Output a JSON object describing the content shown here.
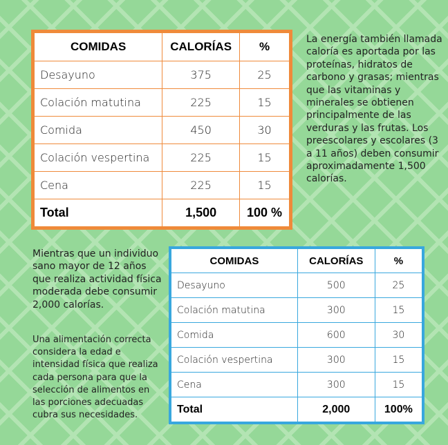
{
  "table1": {
    "headers": [
      "COMIDAS",
      "CALORÍAS",
      "%"
    ],
    "rows": [
      [
        "Desayuno",
        "375",
        "25"
      ],
      [
        "Colación matutina",
        "225",
        "15"
      ],
      [
        "Comida",
        "450",
        "30"
      ],
      [
        "Colación vespertina",
        "225",
        "15"
      ],
      [
        "Cena",
        "225",
        "15"
      ]
    ],
    "total": [
      "Total",
      "1,500",
      "100 %"
    ],
    "border_color": "#ef8a3a"
  },
  "table2": {
    "headers": [
      "COMIDAS",
      "CALORÍAS",
      "%"
    ],
    "rows": [
      [
        "Desayuno",
        "500",
        "25"
      ],
      [
        "Colación matutina",
        "300",
        "15"
      ],
      [
        "Comida",
        "600",
        "30"
      ],
      [
        "Colación vespertina",
        "300",
        "15"
      ],
      [
        "Cena",
        "300",
        "15"
      ]
    ],
    "total": [
      "Total",
      "2,000",
      "100%"
    ],
    "border_color": "#38a7de"
  },
  "text": {
    "right": "La energía también llamada caloría es aportada por las proteínas, hidratos de carbono y grasas; mientras que las vitaminas y minerales se obtienen principalmente de las verduras y las frutas. Los preescolares y escolares (3 a 11 años) deben consumir aproximadamente 1,500 calorías.",
    "left1": "Mientras que un individuo sano mayor de 12 años que realiza actividad física moderada debe consumir 2,000 calorías.",
    "left2": "Una alimentación correcta considera la edad e intensidad física que realiza cada persona para que la selección de alimentos en las porciones adecuadas cubra sus necesidades."
  }
}
